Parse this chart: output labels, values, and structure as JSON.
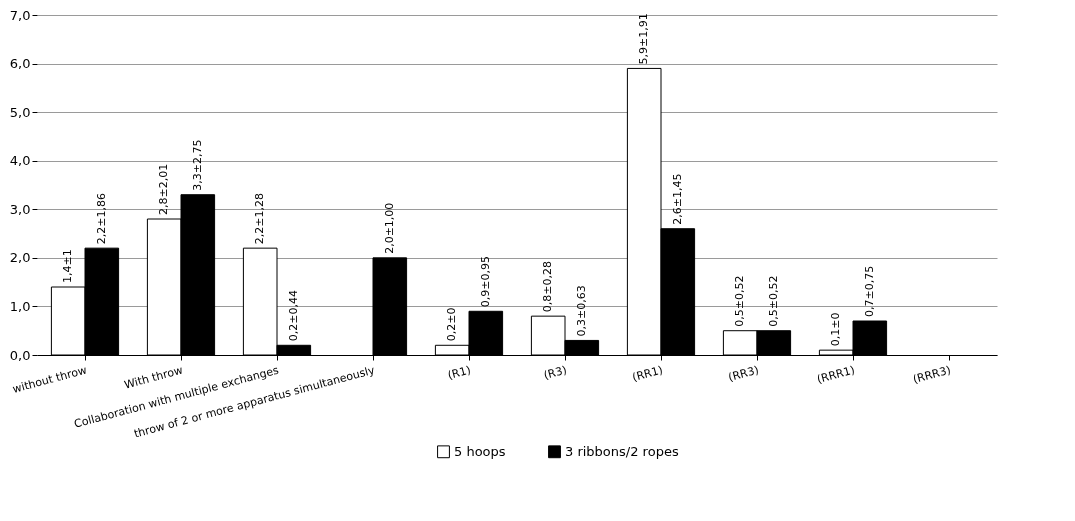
{
  "chart_data": {
    "type": "bar",
    "categories": [
      "without throw",
      "With throw",
      "Collaboration with multiple exchanges",
      "throw of 2 or more apparatus simultaneously",
      "(R1)",
      "(R3)",
      "(RR1)",
      "(RR3)",
      "(RRR1)",
      "(RRR3)"
    ],
    "series": [
      {
        "name": "5 hoops",
        "color": "#ffffff",
        "values": [
          1.4,
          2.8,
          2.2,
          null,
          0.2,
          0.8,
          5.9,
          0.5,
          0.1,
          null
        ],
        "value_labels": [
          "1,4±1",
          "2,8±2,01",
          "2,2±1,28",
          null,
          "0,2±0",
          "0,8±0,28",
          "5,9±1,91",
          "0,5±0,52",
          "0,1±0",
          null
        ]
      },
      {
        "name": "3 ribbons/2 ropes",
        "color": "#000000",
        "values": [
          2.2,
          3.3,
          0.2,
          2.0,
          0.9,
          0.3,
          2.6,
          0.5,
          0.7,
          null
        ],
        "value_labels": [
          "2,2±1,86",
          "3,3±2,75",
          "0,2±0,44",
          "2,0±1,00",
          "0,9±0,95",
          "0,3±0,63",
          "2,6±1,45",
          "0,5±0,52",
          "0,7±0,75",
          null
        ]
      }
    ],
    "ylim": [
      0,
      7
    ],
    "yticks": [
      {
        "value": 0,
        "label": "0,0"
      },
      {
        "value": 1,
        "label": "1,0"
      },
      {
        "value": 2,
        "label": "2,0"
      },
      {
        "value": 3,
        "label": "3,0"
      },
      {
        "value": 4,
        "label": "4,0"
      },
      {
        "value": 5,
        "label": "5,0"
      },
      {
        "value": 6,
        "label": "6,0"
      },
      {
        "value": 7,
        "label": "7,0"
      }
    ],
    "grid": "y",
    "legend": "bottom"
  }
}
